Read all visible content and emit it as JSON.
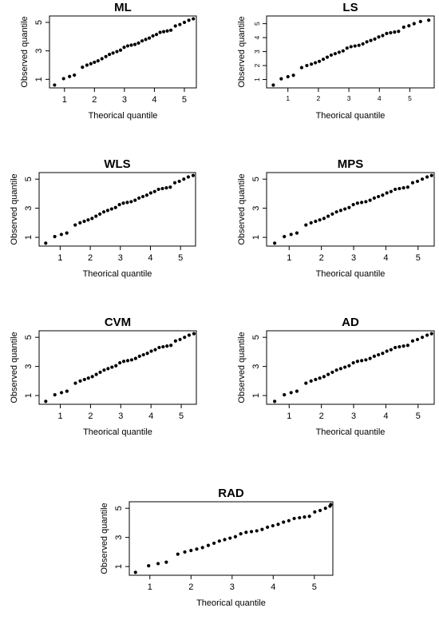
{
  "chart_data": [
    {
      "type": "scatter",
      "title": "ML",
      "xlabel": "Theorical quantile",
      "ylabel": "Observed quantile",
      "xticks": [
        "1",
        "2",
        "3",
        "4",
        "5"
      ],
      "yticks": [
        "1",
        "3",
        "5"
      ],
      "xlim": [
        0.5,
        5.4
      ],
      "ylim": [
        0.4,
        5.45
      ],
      "x": [
        0.67,
        0.97,
        1.17,
        1.33,
        1.6,
        1.75,
        1.88,
        2.0,
        2.12,
        2.25,
        2.38,
        2.5,
        2.62,
        2.75,
        2.87,
        2.99,
        3.11,
        3.23,
        3.35,
        3.47,
        3.59,
        3.71,
        3.83,
        3.95,
        4.07,
        4.19,
        4.31,
        4.43,
        4.55,
        4.7,
        4.85,
        5.0,
        5.15,
        5.3
      ],
      "y": [
        0.6,
        1.05,
        1.2,
        1.3,
        1.85,
        2.0,
        2.1,
        2.2,
        2.3,
        2.45,
        2.6,
        2.75,
        2.85,
        2.95,
        3.05,
        3.25,
        3.35,
        3.4,
        3.45,
        3.55,
        3.7,
        3.8,
        3.9,
        4.05,
        4.15,
        4.3,
        4.35,
        4.4,
        4.45,
        4.75,
        4.85,
        5.0,
        5.15,
        5.25
      ]
    },
    {
      "type": "scatter",
      "title": "LS",
      "xlabel": "Theorical quantile",
      "ylabel": "Observed quantile",
      "xticks": [
        "1",
        "2",
        "3",
        "4",
        "5"
      ],
      "yticks": [
        "1",
        "2",
        "3",
        "4",
        "5"
      ],
      "xlim": [
        0.3,
        5.8
      ],
      "ylim": [
        0.4,
        5.55
      ],
      "x": [
        0.52,
        0.78,
        1.0,
        1.18,
        1.45,
        1.62,
        1.77,
        1.9,
        2.03,
        2.16,
        2.29,
        2.42,
        2.55,
        2.68,
        2.81,
        2.94,
        3.07,
        3.2,
        3.33,
        3.46,
        3.59,
        3.72,
        3.85,
        3.98,
        4.11,
        4.24,
        4.37,
        4.5,
        4.63,
        4.8,
        4.97,
        5.14,
        5.35,
        5.62
      ],
      "y": [
        0.6,
        1.05,
        1.2,
        1.3,
        1.85,
        2.0,
        2.1,
        2.2,
        2.3,
        2.45,
        2.6,
        2.75,
        2.85,
        2.95,
        3.05,
        3.25,
        3.35,
        3.4,
        3.45,
        3.55,
        3.7,
        3.8,
        3.9,
        4.05,
        4.15,
        4.3,
        4.35,
        4.4,
        4.45,
        4.75,
        4.85,
        5.0,
        5.15,
        5.25
      ]
    },
    {
      "type": "scatter",
      "title": "WLS",
      "xlabel": "Theorical quantile",
      "ylabel": "Observed quantile",
      "xticks": [
        "1",
        "2",
        "3",
        "4",
        "5"
      ],
      "yticks": [
        "1",
        "3",
        "5"
      ],
      "xlim": [
        0.3,
        5.5
      ],
      "ylim": [
        0.4,
        5.45
      ],
      "x": [
        0.52,
        0.82,
        1.04,
        1.22,
        1.5,
        1.66,
        1.8,
        1.93,
        2.06,
        2.19,
        2.32,
        2.45,
        2.58,
        2.71,
        2.84,
        2.97,
        3.1,
        3.23,
        3.36,
        3.49,
        3.62,
        3.75,
        3.88,
        4.01,
        4.14,
        4.27,
        4.4,
        4.53,
        4.66,
        4.81,
        4.96,
        5.11,
        5.26,
        5.42
      ],
      "y": [
        0.6,
        1.05,
        1.2,
        1.3,
        1.85,
        2.0,
        2.1,
        2.2,
        2.3,
        2.45,
        2.6,
        2.75,
        2.85,
        2.95,
        3.05,
        3.25,
        3.35,
        3.4,
        3.45,
        3.55,
        3.7,
        3.8,
        3.9,
        4.05,
        4.15,
        4.3,
        4.35,
        4.4,
        4.45,
        4.75,
        4.85,
        5.0,
        5.15,
        5.25
      ]
    },
    {
      "type": "scatter",
      "title": "MPS",
      "xlabel": "Theorical quantile",
      "ylabel": "Observed quantile",
      "xticks": [
        "1",
        "2",
        "3",
        "4",
        "5"
      ],
      "yticks": [
        "1",
        "3",
        "5"
      ],
      "xlim": [
        0.3,
        5.5
      ],
      "ylim": [
        0.4,
        5.45
      ],
      "x": [
        0.55,
        0.85,
        1.06,
        1.24,
        1.52,
        1.68,
        1.82,
        1.95,
        2.08,
        2.21,
        2.34,
        2.47,
        2.6,
        2.73,
        2.86,
        2.99,
        3.12,
        3.25,
        3.38,
        3.51,
        3.64,
        3.77,
        3.9,
        4.03,
        4.16,
        4.29,
        4.42,
        4.55,
        4.68,
        4.83,
        4.98,
        5.13,
        5.28,
        5.42
      ],
      "y": [
        0.6,
        1.05,
        1.2,
        1.3,
        1.85,
        2.0,
        2.1,
        2.2,
        2.3,
        2.45,
        2.6,
        2.75,
        2.85,
        2.95,
        3.05,
        3.25,
        3.35,
        3.4,
        3.45,
        3.55,
        3.7,
        3.8,
        3.9,
        4.05,
        4.15,
        4.3,
        4.35,
        4.4,
        4.45,
        4.75,
        4.85,
        5.0,
        5.15,
        5.25
      ]
    },
    {
      "type": "scatter",
      "title": "CVM",
      "xlabel": "Theorical quantile",
      "ylabel": "Observed quantile",
      "xticks": [
        "1",
        "2",
        "3",
        "4",
        "5"
      ],
      "yticks": [
        "1",
        "3",
        "5"
      ],
      "xlim": [
        0.3,
        5.5
      ],
      "ylim": [
        0.4,
        5.45
      ],
      "x": [
        0.52,
        0.82,
        1.04,
        1.22,
        1.5,
        1.66,
        1.8,
        1.93,
        2.06,
        2.19,
        2.32,
        2.45,
        2.58,
        2.71,
        2.84,
        2.97,
        3.1,
        3.23,
        3.36,
        3.49,
        3.62,
        3.75,
        3.88,
        4.01,
        4.14,
        4.27,
        4.4,
        4.53,
        4.66,
        4.81,
        4.96,
        5.11,
        5.26,
        5.42
      ],
      "y": [
        0.6,
        1.05,
        1.2,
        1.3,
        1.85,
        2.0,
        2.1,
        2.2,
        2.3,
        2.45,
        2.6,
        2.75,
        2.85,
        2.95,
        3.05,
        3.25,
        3.35,
        3.4,
        3.45,
        3.55,
        3.7,
        3.8,
        3.9,
        4.05,
        4.15,
        4.3,
        4.35,
        4.4,
        4.45,
        4.75,
        4.85,
        5.0,
        5.15,
        5.25
      ]
    },
    {
      "type": "scatter",
      "title": "AD",
      "xlabel": "Theorical quantile",
      "ylabel": "Observed quantile",
      "xticks": [
        "1",
        "2",
        "3",
        "4",
        "5"
      ],
      "yticks": [
        "1",
        "3",
        "5"
      ],
      "xlim": [
        0.3,
        5.5
      ],
      "ylim": [
        0.4,
        5.45
      ],
      "x": [
        0.55,
        0.85,
        1.06,
        1.24,
        1.52,
        1.68,
        1.82,
        1.95,
        2.08,
        2.21,
        2.34,
        2.47,
        2.6,
        2.73,
        2.86,
        2.99,
        3.12,
        3.25,
        3.38,
        3.51,
        3.64,
        3.77,
        3.9,
        4.03,
        4.16,
        4.29,
        4.42,
        4.55,
        4.68,
        4.83,
        4.98,
        5.13,
        5.28,
        5.42
      ],
      "y": [
        0.6,
        1.05,
        1.2,
        1.3,
        1.85,
        2.0,
        2.1,
        2.2,
        2.3,
        2.45,
        2.6,
        2.75,
        2.85,
        2.95,
        3.05,
        3.25,
        3.35,
        3.4,
        3.45,
        3.55,
        3.7,
        3.8,
        3.9,
        4.05,
        4.15,
        4.3,
        4.35,
        4.4,
        4.45,
        4.75,
        4.85,
        5.0,
        5.15,
        5.25
      ]
    },
    {
      "type": "scatter",
      "title": "RAD",
      "xlabel": "Theorical quantile",
      "ylabel": "Observed quantile",
      "xticks": [
        "1",
        "2",
        "3",
        "4",
        "5"
      ],
      "yticks": [
        "1",
        "3",
        "5"
      ],
      "xlim": [
        0.5,
        5.45
      ],
      "ylim": [
        0.4,
        5.45
      ],
      "x": [
        0.65,
        0.97,
        1.2,
        1.4,
        1.68,
        1.85,
        2.0,
        2.14,
        2.28,
        2.42,
        2.56,
        2.69,
        2.82,
        2.95,
        3.08,
        3.21,
        3.34,
        3.47,
        3.6,
        3.73,
        3.86,
        3.99,
        4.12,
        4.25,
        4.38,
        4.51,
        4.64,
        4.76,
        4.88,
        5.01,
        5.14,
        5.27,
        5.38,
        5.4
      ],
      "y": [
        0.6,
        1.05,
        1.2,
        1.3,
        1.85,
        2.0,
        2.1,
        2.2,
        2.3,
        2.45,
        2.6,
        2.75,
        2.85,
        2.95,
        3.05,
        3.25,
        3.35,
        3.4,
        3.45,
        3.55,
        3.7,
        3.8,
        3.9,
        4.05,
        4.15,
        4.3,
        4.35,
        4.4,
        4.45,
        4.75,
        4.85,
        5.0,
        5.15,
        5.25
      ]
    }
  ]
}
